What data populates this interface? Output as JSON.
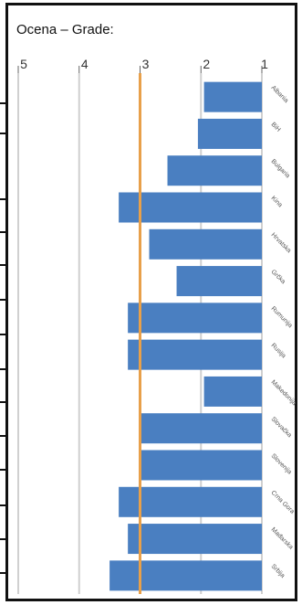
{
  "chart_data": {
    "type": "bar",
    "orientation": "horizontal",
    "title": "Ocena – Grade:",
    "xlim": [
      5,
      1
    ],
    "xticks": [
      5,
      4,
      3,
      2,
      1
    ],
    "reference_line": 3,
    "categories": [
      "Albania",
      "BiH",
      "Bulgaria",
      "Kina",
      "Hrvatska",
      "Grčka",
      "Rumunija",
      "Rusija",
      "Makedonija",
      "Slovačka",
      "Slovenija",
      "Crna Gora",
      "Mađarska",
      "Srbija"
    ],
    "values": [
      1.95,
      2.05,
      2.55,
      3.35,
      2.85,
      2.4,
      3.2,
      3.2,
      1.95,
      3.0,
      3.0,
      3.35,
      3.2,
      3.5
    ],
    "grid": true,
    "colors": {
      "bar": "#4a7fc1",
      "reference": "#e8a04a",
      "grid": "#d0d0d0"
    }
  }
}
